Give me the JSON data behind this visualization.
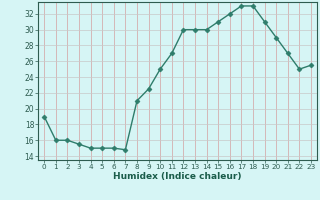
{
  "x": [
    0,
    1,
    2,
    3,
    4,
    5,
    6,
    7,
    8,
    9,
    10,
    11,
    12,
    13,
    14,
    15,
    16,
    17,
    18,
    19,
    20,
    21,
    22,
    23
  ],
  "y": [
    19,
    16,
    16,
    15.5,
    15,
    15,
    15,
    14.8,
    21,
    22.5,
    25,
    27,
    30,
    30,
    30,
    31,
    32,
    33,
    33,
    31,
    29,
    27,
    25,
    25.5
  ],
  "line_color": "#2e7d6b",
  "marker": "D",
  "marker_size": 2.5,
  "bg_color": "#d6f5f5",
  "grid_color_v": "#d4a0a0",
  "grid_color_h": "#c8c8c8",
  "xlabel": "Humidex (Indice chaleur)",
  "xlim": [
    -0.5,
    23.5
  ],
  "ylim": [
    13.5,
    33.5
  ],
  "yticks": [
    14,
    16,
    18,
    20,
    22,
    24,
    26,
    28,
    30,
    32
  ],
  "xticks": [
    0,
    1,
    2,
    3,
    4,
    5,
    6,
    7,
    8,
    9,
    10,
    11,
    12,
    13,
    14,
    15,
    16,
    17,
    18,
    19,
    20,
    21,
    22,
    23
  ],
  "label_color": "#1a5c4a",
  "tick_color": "#2e5c50",
  "spine_color": "#2e5c50"
}
